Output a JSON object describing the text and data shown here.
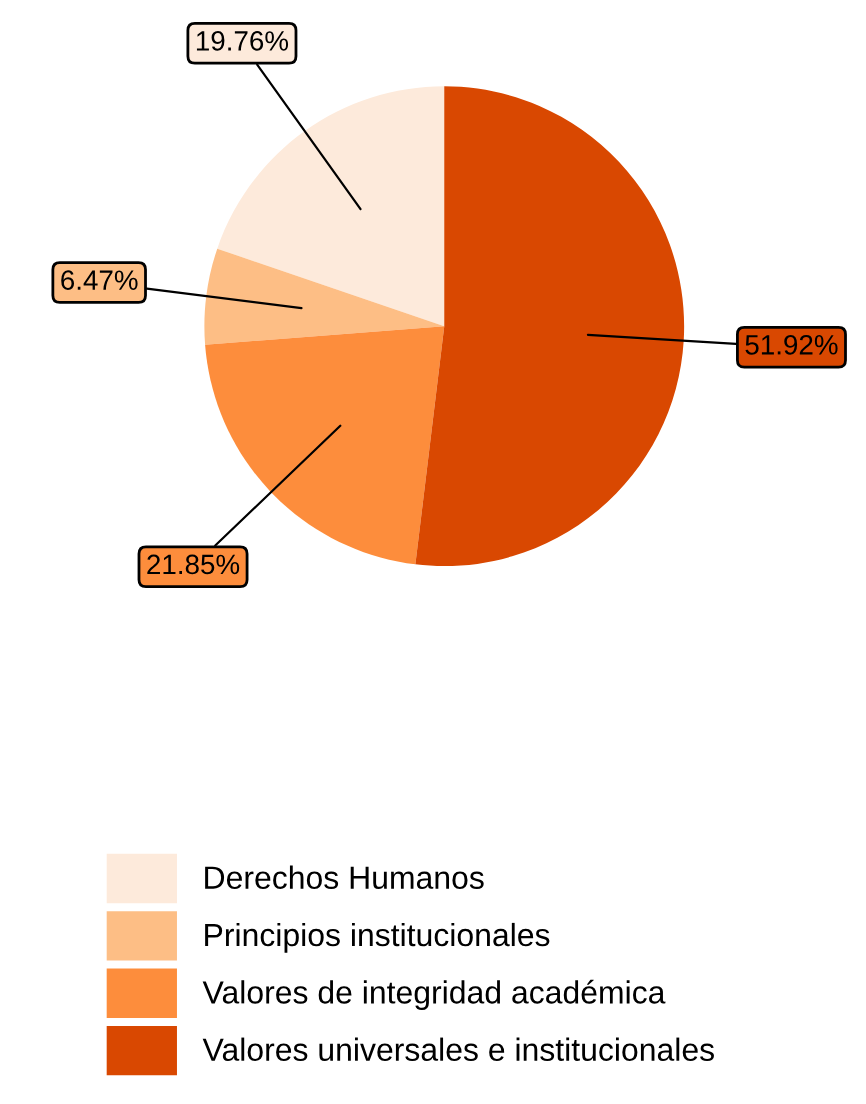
{
  "chart_data": {
    "type": "pie",
    "categories": [
      "Derechos Humanos",
      "Principios institucionales",
      "Valores de integridad académica",
      "Valores universales e institucionales"
    ],
    "values": [
      19.76,
      6.47,
      21.85,
      51.92
    ],
    "colors": [
      "#fdeadb",
      "#fdbe85",
      "#fd8d3c",
      "#d94801"
    ],
    "value_labels": [
      "19.76%",
      "6.47%",
      "21.85%",
      "51.92%"
    ],
    "legend": "bottom"
  }
}
